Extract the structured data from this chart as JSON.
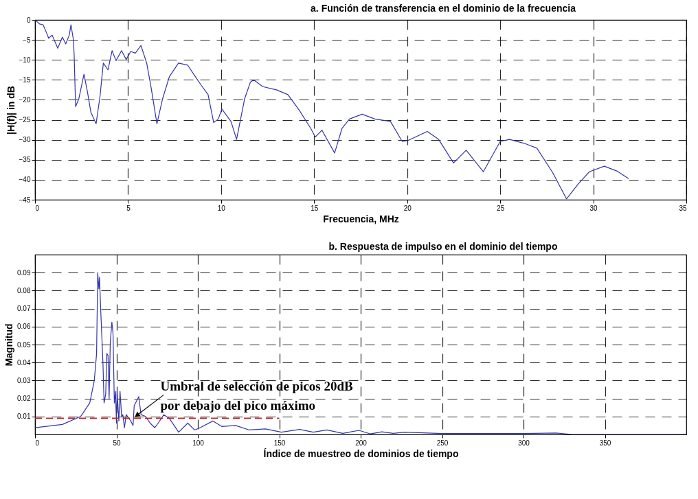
{
  "chart_data": [
    {
      "type": "line",
      "title": "a. Función de transferencia en el dominio de la frecuencia",
      "xlabel": "Frecuencia, MHz",
      "ylabel": "|H(f)| in dB",
      "xlim": [
        0,
        35
      ],
      "xticks": [
        0,
        5,
        10,
        15,
        20,
        25,
        30,
        35
      ],
      "ylim": [
        -45,
        0
      ],
      "yticks": [
        0,
        -5,
        -10,
        -15,
        -20,
        -25,
        -30,
        -35,
        -40,
        -45
      ],
      "grid": true,
      "line_style": "solid",
      "series": [
        {
          "color": "#3333aa",
          "x": [
            0,
            0.24,
            0.43,
            0.67,
            0.73,
            0.92,
            1.22,
            1.47,
            1.65,
            1.84,
            1.93,
            2.06,
            2.1,
            2.18,
            2.35,
            2.63,
            2.82,
            3.0,
            3.28,
            3.49,
            3.67,
            3.92,
            4.14,
            4.35,
            4.65,
            4.9,
            5.14,
            5.39,
            5.69,
            6.0,
            6.24,
            6.55,
            6.85,
            7.22,
            7.71,
            8.2,
            8.57,
            8.94,
            9.3,
            9.6,
            9.85,
            10.04,
            10.53,
            10.83,
            11.26,
            11.57,
            11.75,
            12.24,
            12.97,
            13.59,
            14.2,
            14.81,
            15.06,
            15.42,
            16.1,
            16.5,
            16.9,
            17.58,
            18.26,
            19.1,
            19.73,
            20.04,
            21.08,
            21.69,
            22.49,
            23.17,
            24.09,
            25.0,
            25.5,
            26.36,
            26.97,
            27.83,
            28.56,
            29.18,
            29.79,
            30.59,
            31.26,
            31.9
          ],
          "values": [
            0,
            -1.0,
            -1.2,
            -3.8,
            -4.6,
            -3.8,
            -7.1,
            -4.3,
            -6.0,
            -3.8,
            -1.2,
            -4.9,
            -8.5,
            -21.7,
            -19.8,
            -13.6,
            -18.1,
            -23.1,
            -26.0,
            -19.2,
            -10.8,
            -12.5,
            -7.7,
            -10.2,
            -7.7,
            -9.9,
            -7.9,
            -8.3,
            -6.4,
            -10.8,
            -17.0,
            -26.0,
            -19.8,
            -14.2,
            -10.8,
            -11.3,
            -13.9,
            -16.4,
            -18.7,
            -25.7,
            -24.8,
            -22.3,
            -25.4,
            -29.9,
            -19.8,
            -15.6,
            -15.0,
            -16.7,
            -17.5,
            -18.7,
            -22.6,
            -27.1,
            -29.3,
            -27.6,
            -33.3,
            -27.1,
            -24.8,
            -23.6,
            -24.8,
            -25.4,
            -30.4,
            -30.2,
            -27.9,
            -29.9,
            -35.8,
            -32.6,
            -38.0,
            -30.4,
            -29.9,
            -31.0,
            -32.1,
            -38.3,
            -44.8,
            -41.1,
            -38.0,
            -36.6,
            -37.8,
            -39.7
          ]
        }
      ]
    },
    {
      "type": "line",
      "title": "b. Respuesta de impulso en el dominio del tiempo",
      "xlabel": "Índice de muestreo de dominios de tiempo",
      "ylabel": "Magnitud",
      "xlim": [
        0,
        400
      ],
      "xticks": [
        0,
        50,
        100,
        150,
        200,
        250,
        300,
        350
      ],
      "ylim": [
        0,
        0.1
      ],
      "yticks": [
        0.01,
        0.02,
        0.03,
        0.04,
        0.05,
        0.06,
        0.07,
        0.08,
        0.09
      ],
      "grid": true,
      "annotations": [
        {
          "text": "Umbral de selección de picos 20dB\npor debajo del pico máximo",
          "x": 63,
          "y": 0.011
        }
      ],
      "series": [
        {
          "color": "#3333aa",
          "line_style": "solid",
          "x": [
            0,
            16.8,
            28,
            33.6,
            36.4,
            37.8,
            38.5,
            39.2,
            39.6,
            40.3,
            41.7,
            42.4,
            43.4,
            44.1,
            44.8,
            45.5,
            46.2,
            47.2,
            47.9,
            48.7,
            49.4,
            50,
            50.4,
            51.5,
            52.2,
            53.2,
            53.9,
            54.9,
            56,
            58.8,
            60.2,
            60.9,
            63.7,
            65.1,
            67.9,
            70.7,
            73.5,
            75.6,
            79.1,
            82.6,
            88.2,
            93.8,
            98,
            101.5,
            109.2,
            114.8,
            123.2,
            131.6,
            141.5,
            151.3,
            162.5,
            170.9,
            179.3,
            189,
            199,
            206,
            213,
            220,
            227,
            250,
            300,
            320,
            330,
            400
          ],
          "values": [
            0.0038,
            0.0056,
            0.01,
            0.0175,
            0.03,
            0.045,
            0.09,
            0.081,
            0.0875,
            0.07,
            0.04,
            0.0175,
            0.0225,
            0.045,
            0.044,
            0.02,
            0.051,
            0.0625,
            0.056,
            0.0175,
            0.024,
            0.0063,
            0.024,
            0.0075,
            0.024,
            0.01,
            0.011,
            0.0038,
            0.011,
            0.0075,
            0.005,
            0.016,
            0.021,
            0.011,
            0.01,
            0.0063,
            0.0038,
            0.0063,
            0.011,
            0.0088,
            0.0013,
            0.0063,
            0.0025,
            0.0038,
            0.0075,
            0.0044,
            0.005,
            0.0025,
            0.0031,
            0.0013,
            0.0028,
            0.0013,
            0.0025,
            0.0006,
            0.0023,
            0.0003,
            0.0015,
            0.0006,
            0.0013,
            0.0005,
            0.0005,
            0.0008,
            0,
            0
          ]
        },
        {
          "color": "#cc2222",
          "line_style": "dashed",
          "x": [
            0,
            150
          ],
          "values": [
            0.009,
            0.009
          ]
        }
      ]
    }
  ]
}
